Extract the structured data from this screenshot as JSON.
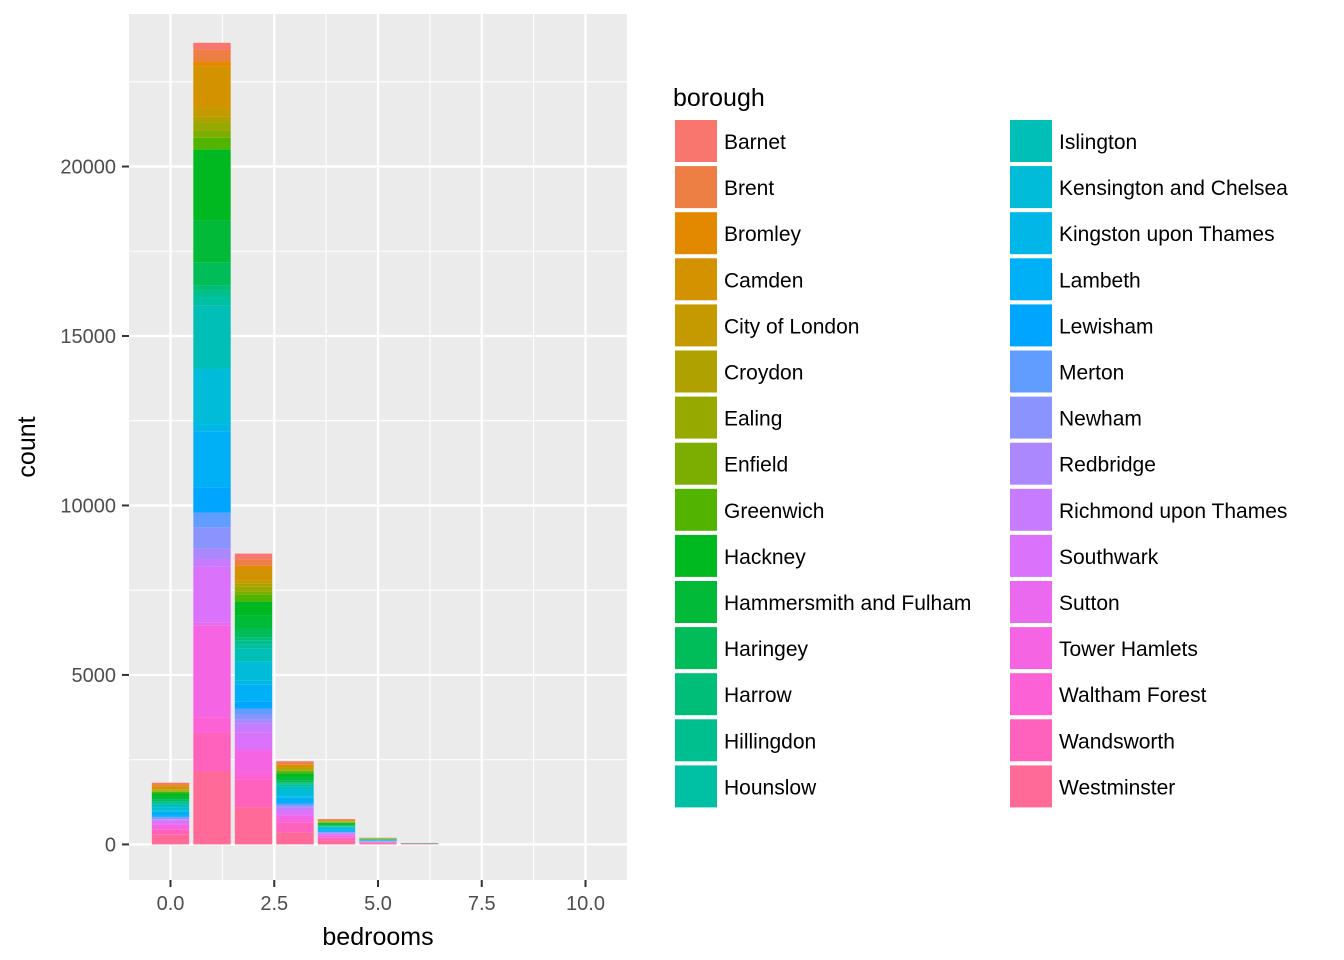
{
  "chart_data": {
    "type": "bar",
    "stacked": true,
    "xlabel": "bedrooms",
    "ylabel": "count",
    "x_ticks": [
      0,
      2.5,
      5,
      7.5,
      10
    ],
    "x_tick_labels": [
      "0.0",
      "2.5",
      "5.0",
      "7.5",
      "10.0"
    ],
    "y_ticks": [
      0,
      5000,
      10000,
      15000,
      20000
    ],
    "y_tick_labels": [
      "0",
      "5000",
      "10000",
      "15000",
      "20000"
    ],
    "xlim": [
      -1,
      11
    ],
    "ylim": [
      -1050,
      24500
    ],
    "grid": true,
    "legend": {
      "title": "borough",
      "position": "right",
      "columns": 2
    },
    "categories": [
      0,
      1,
      2,
      3,
      4,
      5,
      6,
      7,
      8,
      9,
      10
    ],
    "series": [
      {
        "name": "Barnet",
        "color": "#F8766D",
        "values": [
          40,
          200,
          170,
          40,
          12,
          4,
          1,
          0,
          0,
          0,
          0
        ]
      },
      {
        "name": "Brent",
        "color": "#EE7F44",
        "values": [
          40,
          350,
          190,
          50,
          15,
          5,
          1,
          0,
          0,
          0,
          0
        ]
      },
      {
        "name": "Bromley",
        "color": "#E38900",
        "values": [
          20,
          160,
          80,
          20,
          8,
          2,
          0,
          0,
          0,
          0,
          0
        ]
      },
      {
        "name": "Camden",
        "color": "#D39200",
        "values": [
          90,
          1200,
          350,
          90,
          30,
          8,
          2,
          0,
          0,
          0,
          0
        ]
      },
      {
        "name": "City of London",
        "color": "#C49A00",
        "values": [
          15,
          260,
          100,
          15,
          4,
          1,
          0,
          0,
          0,
          0,
          0
        ]
      },
      {
        "name": "Croydon",
        "color": "#AFA200",
        "values": [
          20,
          180,
          90,
          25,
          8,
          2,
          0,
          0,
          0,
          0,
          0
        ]
      },
      {
        "name": "Ealing",
        "color": "#96A900",
        "values": [
          30,
          250,
          150,
          45,
          15,
          4,
          1,
          0,
          0,
          0,
          0
        ]
      },
      {
        "name": "Enfield",
        "color": "#7BAE00",
        "values": [
          15,
          200,
          70,
          20,
          6,
          2,
          0,
          0,
          0,
          0,
          0
        ]
      },
      {
        "name": "Greenwich",
        "color": "#53B400",
        "values": [
          35,
          340,
          210,
          50,
          15,
          4,
          1,
          0,
          0,
          0,
          0
        ]
      },
      {
        "name": "Hackney",
        "color": "#00B81F",
        "values": [
          100,
          2100,
          420,
          110,
          30,
          8,
          2,
          0,
          0,
          0,
          0
        ]
      },
      {
        "name": "Hammersmith and Fulham",
        "color": "#00BA38",
        "values": [
          80,
          1250,
          380,
          100,
          30,
          8,
          2,
          0,
          0,
          0,
          0
        ]
      },
      {
        "name": "Haringey",
        "color": "#00BC59",
        "values": [
          60,
          680,
          260,
          70,
          20,
          5,
          1,
          0,
          0,
          0,
          0
        ]
      },
      {
        "name": "Harrow",
        "color": "#00BE78",
        "values": [
          25,
          150,
          100,
          30,
          10,
          3,
          0,
          0,
          0,
          0,
          0
        ]
      },
      {
        "name": "Hillingdon",
        "color": "#00BF8E",
        "values": [
          30,
          180,
          110,
          30,
          10,
          3,
          0,
          0,
          0,
          0,
          0
        ]
      },
      {
        "name": "Hounslow",
        "color": "#00C0A3",
        "values": [
          30,
          260,
          130,
          40,
          12,
          3,
          0,
          0,
          0,
          0,
          0
        ]
      },
      {
        "name": "Islington",
        "color": "#00BFB7",
        "values": [
          90,
          1850,
          380,
          100,
          30,
          8,
          2,
          0,
          0,
          0,
          0
        ]
      },
      {
        "name": "Kensington and Chelsea",
        "color": "#00BCD8",
        "values": [
          110,
          1650,
          560,
          200,
          60,
          15,
          4,
          0,
          0,
          0,
          0
        ]
      },
      {
        "name": "Kingston upon Thames",
        "color": "#00B7E8",
        "values": [
          25,
          200,
          120,
          30,
          10,
          3,
          0,
          0,
          0,
          0,
          0
        ]
      },
      {
        "name": "Lambeth",
        "color": "#00B0F6",
        "values": [
          100,
          1650,
          500,
          140,
          40,
          10,
          2,
          0,
          0,
          0,
          0
        ]
      },
      {
        "name": "Lewisham",
        "color": "#00A5FF",
        "values": [
          50,
          750,
          200,
          50,
          15,
          4,
          1,
          0,
          0,
          0,
          0
        ]
      },
      {
        "name": "Merton",
        "color": "#619CFF",
        "values": [
          30,
          430,
          180,
          50,
          15,
          4,
          1,
          0,
          0,
          0,
          0
        ]
      },
      {
        "name": "Newham",
        "color": "#8B93FF",
        "values": [
          40,
          640,
          150,
          40,
          12,
          3,
          0,
          0,
          0,
          0,
          0
        ]
      },
      {
        "name": "Redbridge",
        "color": "#AC88FF",
        "values": [
          20,
          300,
          120,
          30,
          10,
          3,
          0,
          0,
          0,
          0,
          0
        ]
      },
      {
        "name": "Richmond upon Thames",
        "color": "#C77CFF",
        "values": [
          30,
          230,
          250,
          80,
          25,
          6,
          1,
          0,
          0,
          0,
          0
        ]
      },
      {
        "name": "Southwark",
        "color": "#DB72FB",
        "values": [
          90,
          1650,
          480,
          130,
          40,
          10,
          2,
          0,
          0,
          0,
          0
        ]
      },
      {
        "name": "Sutton",
        "color": "#EA69EE",
        "values": [
          15,
          90,
          60,
          20,
          6,
          2,
          0,
          0,
          0,
          0,
          0
        ]
      },
      {
        "name": "Tower Hamlets",
        "color": "#F564E3",
        "values": [
          120,
          2700,
          650,
          160,
          45,
          12,
          3,
          0,
          0,
          0,
          0
        ]
      },
      {
        "name": "Waltham Forest",
        "color": "#FC61D5",
        "values": [
          40,
          450,
          200,
          50,
          15,
          4,
          1,
          0,
          0,
          0,
          0
        ]
      },
      {
        "name": "Wandsworth",
        "color": "#FF62BC",
        "values": [
          130,
          1150,
          820,
          280,
          80,
          20,
          5,
          0,
          0,
          0,
          0
        ]
      },
      {
        "name": "Westminster",
        "color": "#FF6A98",
        "values": [
          300,
          2150,
          1100,
          360,
          120,
          30,
          8,
          0,
          0,
          0,
          0
        ]
      }
    ]
  }
}
